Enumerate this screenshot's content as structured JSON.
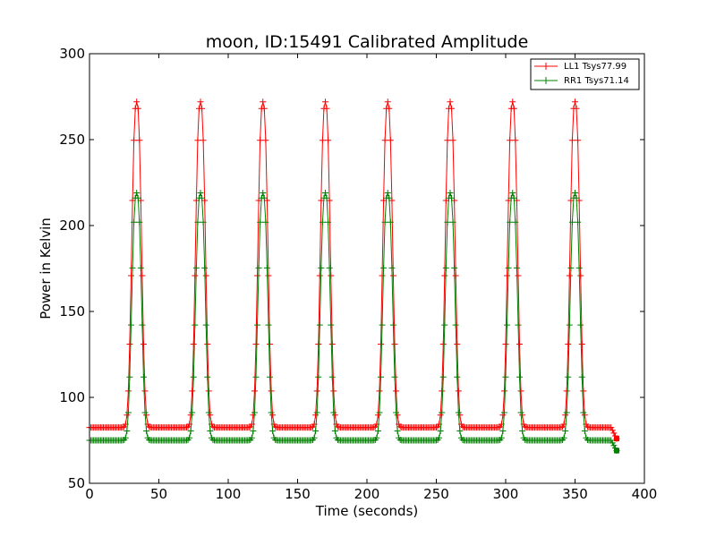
{
  "chart_data": {
    "type": "line",
    "title": "moon, ID:15491 Calibrated Amplitude",
    "xlabel": "Time (seconds)",
    "ylabel": "Power in Kelvin",
    "xlim": [
      0,
      400
    ],
    "ylim": [
      50,
      300
    ],
    "xticks": [
      0,
      50,
      100,
      150,
      200,
      250,
      300,
      350,
      400
    ],
    "yticks": [
      50,
      100,
      150,
      200,
      250,
      300
    ],
    "grid": false,
    "legend_position": "top-right",
    "marker": "plus",
    "peak_centers": [
      34,
      80,
      125,
      170,
      215,
      260,
      305,
      350
    ],
    "sample_interval": 1,
    "x_end": 380,
    "series": [
      {
        "name": "LL1 Tsys77.99",
        "color": "#ff0000",
        "baseline": 82.5,
        "peak": 272,
        "end_value": 76
      },
      {
        "name": "RR1 Tsys71.14",
        "color": "#008000",
        "baseline": 75,
        "peak": 219,
        "end_value": 69
      }
    ]
  }
}
